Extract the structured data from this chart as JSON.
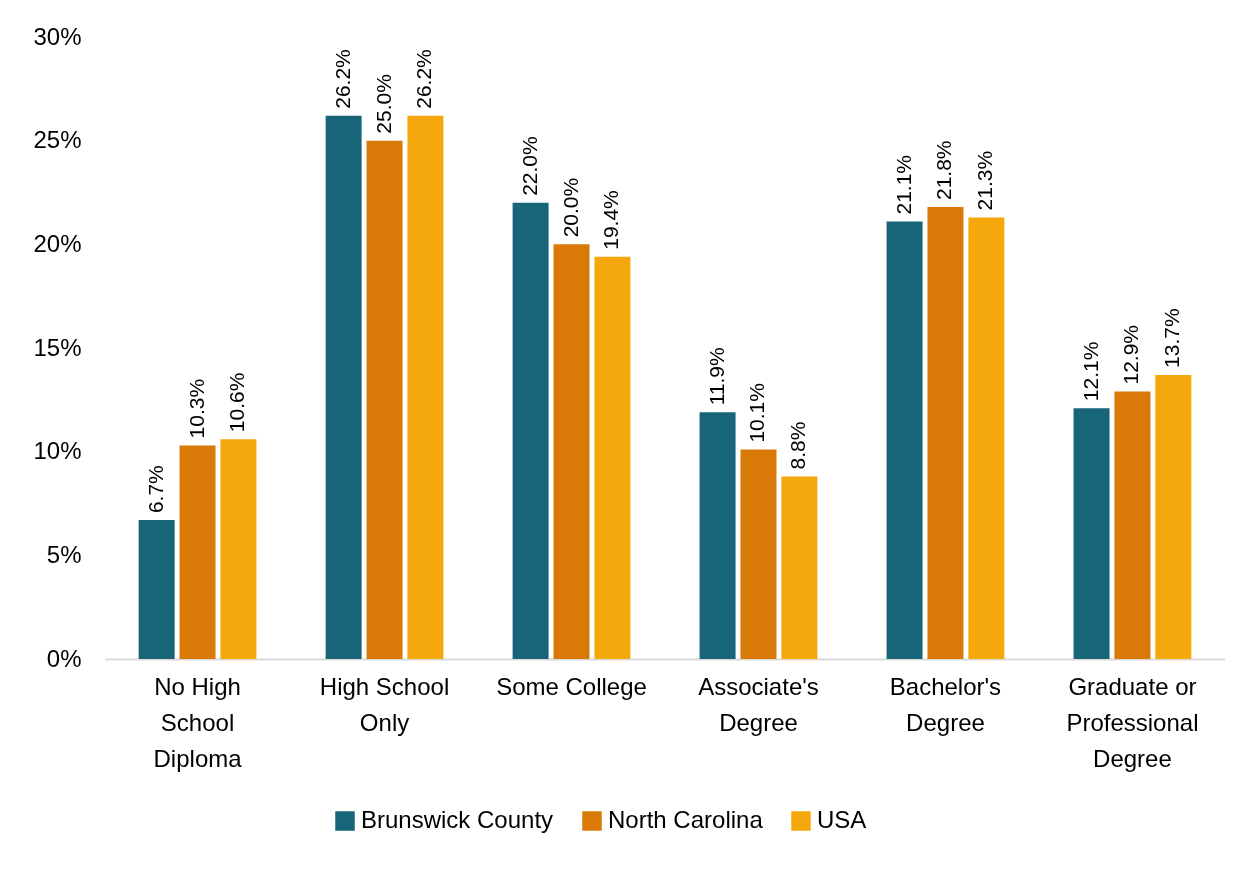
{
  "chart_data": {
    "type": "bar",
    "categories": [
      "No High School Diploma",
      "High School Only",
      "Some College",
      "Associate's Degree",
      "Bachelor's Degree",
      "Graduate or Professional Degree"
    ],
    "series": [
      {
        "name": "Brunswick County",
        "color": "#186579",
        "values": [
          6.7,
          26.2,
          22.0,
          11.9,
          21.1,
          12.1
        ],
        "value_labels": [
          "6.7%",
          "26.2%",
          "22.0%",
          "11.9%",
          "21.1%",
          "12.1%"
        ]
      },
      {
        "name": "North Carolina",
        "color": "#d97907",
        "values": [
          10.3,
          25.0,
          20.0,
          10.1,
          21.8,
          12.9
        ],
        "value_labels": [
          "10.3%",
          "25.0%",
          "20.0%",
          "10.1%",
          "21.8%",
          "12.9%"
        ]
      },
      {
        "name": "USA",
        "color": "#f4a80b",
        "values": [
          10.6,
          26.2,
          19.4,
          8.8,
          21.3,
          13.7
        ],
        "value_labels": [
          "10.6%",
          "26.2%",
          "19.4%",
          "8.8%",
          "21.3%",
          "13.7%"
        ]
      }
    ],
    "ylim": [
      0,
      30
    ],
    "yticks": [
      {
        "value": 0,
        "label": "0%"
      },
      {
        "value": 5,
        "label": "5%"
      },
      {
        "value": 10,
        "label": "10%"
      },
      {
        "value": 15,
        "label": "15%"
      },
      {
        "value": 20,
        "label": "20%"
      },
      {
        "value": 25,
        "label": "25%"
      },
      {
        "value": 30,
        "label": "30%"
      }
    ],
    "grid": false,
    "legend": "bottom"
  }
}
